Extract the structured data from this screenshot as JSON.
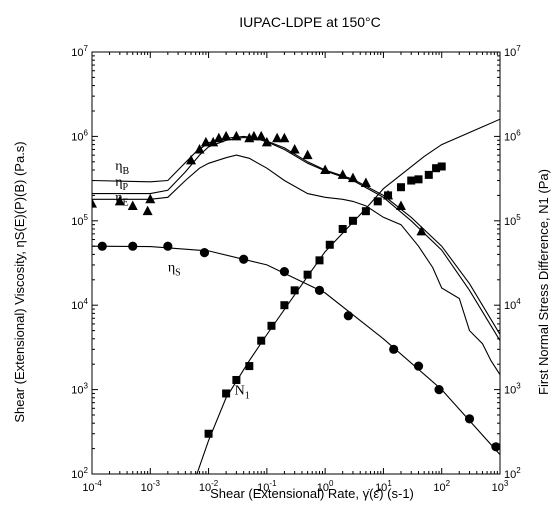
{
  "chart_data": {
    "type": "scatter",
    "title": "IUPAC-LDPE at 150°C",
    "xlabel": "Shear (Extensional) Rate, γ̇(ε̇) (s-1)",
    "ylabel": "Shear (Extensional) Viscosity, ηS(E)(P)(B) (Pa.s)",
    "y2label": "First Normal Stress Difference, N1 (Pa)",
    "x_scale": "log",
    "y_scale": "log",
    "xlim": [
      0.0001,
      1000
    ],
    "ylim": [
      100,
      10000000
    ],
    "y2lim": [
      100,
      10000000
    ],
    "x_ticks": [
      {
        "base": "10",
        "exp": "-4",
        "value": 0.0001
      },
      {
        "base": "10",
        "exp": "-3",
        "value": 0.001
      },
      {
        "base": "10",
        "exp": "-2",
        "value": 0.01
      },
      {
        "base": "10",
        "exp": "-1",
        "value": 0.1
      },
      {
        "base": "10",
        "exp": "0",
        "value": 1
      },
      {
        "base": "10",
        "exp": "1",
        "value": 10
      },
      {
        "base": "10",
        "exp": "2",
        "value": 100
      },
      {
        "base": "10",
        "exp": "3",
        "value": 1000
      }
    ],
    "y_ticks": [
      {
        "base": "10",
        "exp": "2",
        "value": 100
      },
      {
        "base": "10",
        "exp": "3",
        "value": 1000
      },
      {
        "base": "10",
        "exp": "4",
        "value": 10000
      },
      {
        "base": "10",
        "exp": "5",
        "value": 100000
      },
      {
        "base": "10",
        "exp": "6",
        "value": 1000000
      },
      {
        "base": "10",
        "exp": "7",
        "value": 10000000
      }
    ],
    "curve_labels": [
      {
        "main": "η",
        "sub": "B"
      },
      {
        "main": "η",
        "sub": "P"
      },
      {
        "main": "η",
        "sub": "E"
      },
      {
        "main": "η",
        "sub": "S"
      },
      {
        "main": "N",
        "sub": "1"
      }
    ],
    "series": [
      {
        "name": "ηS",
        "kind": "points",
        "marker": "circle",
        "points": [
          [
            0.00015,
            50000
          ],
          [
            0.0005,
            50000
          ],
          [
            0.002,
            50000
          ],
          [
            0.0085,
            42000
          ],
          [
            0.04,
            35000
          ],
          [
            0.2,
            25000
          ],
          [
            0.8,
            15000
          ],
          [
            2.5,
            7500
          ],
          [
            15,
            3000
          ],
          [
            40,
            1900
          ],
          [
            90,
            1000
          ],
          [
            300,
            450
          ],
          [
            850,
            210
          ]
        ]
      },
      {
        "name": "ηS",
        "kind": "line",
        "points": [
          [
            0.0001,
            50000
          ],
          [
            0.001,
            49500
          ],
          [
            0.01,
            44000
          ],
          [
            0.1,
            30000
          ],
          [
            1,
            14000
          ],
          [
            10,
            4000
          ],
          [
            100,
            1000
          ],
          [
            1000,
            170
          ]
        ]
      },
      {
        "name": "ηE",
        "kind": "points",
        "marker": "triangle",
        "points": [
          [
            0.0001,
            160000
          ],
          [
            0.0003,
            170000
          ],
          [
            0.0005,
            150000
          ],
          [
            0.0009,
            130000
          ],
          [
            0.001,
            180000
          ],
          [
            0.005,
            520000
          ],
          [
            0.007,
            700000
          ],
          [
            0.009,
            850000
          ],
          [
            0.012,
            850000
          ],
          [
            0.015,
            950000
          ],
          [
            0.02,
            1000000
          ],
          [
            0.03,
            1000000
          ],
          [
            0.05,
            950000
          ],
          [
            0.06,
            1000000
          ],
          [
            0.08,
            1000000
          ],
          [
            0.1,
            850000
          ],
          [
            0.15,
            950000
          ],
          [
            0.2,
            950000
          ],
          [
            0.3,
            700000
          ],
          [
            0.5,
            600000
          ],
          [
            1,
            400000
          ],
          [
            2,
            350000
          ],
          [
            3,
            320000
          ],
          [
            5,
            280000
          ],
          [
            12,
            200000
          ],
          [
            20,
            150000
          ],
          [
            45,
            75000
          ]
        ]
      },
      {
        "name": "N1",
        "kind": "points",
        "marker": "square",
        "points": [
          [
            0.01,
            300
          ],
          [
            0.02,
            900
          ],
          [
            0.03,
            1300
          ],
          [
            0.05,
            1900
          ],
          [
            0.08,
            3800
          ],
          [
            0.12,
            5700
          ],
          [
            0.2,
            10000
          ],
          [
            0.3,
            15000
          ],
          [
            0.5,
            23000
          ],
          [
            0.8,
            34000
          ],
          [
            1.2,
            52000
          ],
          [
            2,
            80000
          ],
          [
            3,
            100000
          ],
          [
            5,
            130000
          ],
          [
            8,
            170000
          ],
          [
            12,
            200000
          ],
          [
            20,
            250000
          ],
          [
            30,
            300000
          ],
          [
            40,
            310000
          ],
          [
            60,
            350000
          ],
          [
            80,
            420000
          ],
          [
            100,
            440000
          ]
        ]
      },
      {
        "name": "N1",
        "kind": "line",
        "points": [
          [
            0.0063,
            100
          ],
          [
            0.01,
            250
          ],
          [
            0.02,
            800
          ],
          [
            0.05,
            2200
          ],
          [
            0.1,
            4500
          ],
          [
            0.5,
            22000
          ],
          [
            1,
            43000
          ],
          [
            5,
            140000
          ],
          [
            10,
            240000
          ],
          [
            50,
            580000
          ],
          [
            100,
            800000
          ],
          [
            1000,
            1600000
          ]
        ]
      },
      {
        "name": "ηB",
        "kind": "line",
        "points": [
          [
            0.0001,
            300000
          ],
          [
            0.001,
            290000
          ],
          [
            0.002,
            300000
          ],
          [
            0.003,
            400000
          ],
          [
            0.006,
            650000
          ],
          [
            0.01,
            840000
          ],
          [
            0.02,
            950000
          ],
          [
            0.04,
            1000000
          ],
          [
            0.07,
            950000
          ],
          [
            0.1,
            880000
          ],
          [
            0.2,
            730000
          ],
          [
            0.5,
            500000
          ],
          [
            1,
            400000
          ],
          [
            3,
            310000
          ],
          [
            10,
            200000
          ],
          [
            30,
            110000
          ],
          [
            100,
            50000
          ],
          [
            300,
            18000
          ],
          [
            1000,
            4500
          ]
        ]
      },
      {
        "name": "ηP",
        "kind": "line",
        "points": [
          [
            0.0001,
            210000
          ],
          [
            0.001,
            210000
          ],
          [
            0.002,
            230000
          ],
          [
            0.004,
            380000
          ],
          [
            0.007,
            600000
          ],
          [
            0.01,
            750000
          ],
          [
            0.02,
            900000
          ],
          [
            0.04,
            970000
          ],
          [
            0.07,
            930000
          ],
          [
            0.1,
            860000
          ],
          [
            0.2,
            700000
          ],
          [
            0.5,
            480000
          ],
          [
            1,
            390000
          ],
          [
            3,
            300000
          ],
          [
            10,
            190000
          ],
          [
            30,
            100000
          ],
          [
            100,
            45000
          ],
          [
            300,
            15000
          ],
          [
            1000,
            3800
          ]
        ]
      },
      {
        "name": "ηE",
        "kind": "line",
        "points": [
          [
            0.0001,
            180000
          ],
          [
            0.001,
            180000
          ],
          [
            0.002,
            190000
          ],
          [
            0.004,
            300000
          ],
          [
            0.007,
            420000
          ],
          [
            0.01,
            480000
          ],
          [
            0.02,
            560000
          ],
          [
            0.03,
            600000
          ],
          [
            0.05,
            550000
          ],
          [
            0.1,
            420000
          ],
          [
            0.2,
            300000
          ],
          [
            0.5,
            210000
          ],
          [
            1,
            190000
          ],
          [
            2,
            180000
          ],
          [
            3,
            170000
          ],
          [
            5,
            150000
          ],
          [
            10,
            110000
          ],
          [
            20,
            90000
          ],
          [
            40,
            50000
          ],
          [
            70,
            28000
          ],
          [
            100,
            16000
          ],
          [
            200,
            12000
          ],
          [
            300,
            5000
          ],
          [
            500,
            3500
          ],
          [
            700,
            2200
          ],
          [
            1000,
            1500
          ]
        ]
      }
    ]
  }
}
